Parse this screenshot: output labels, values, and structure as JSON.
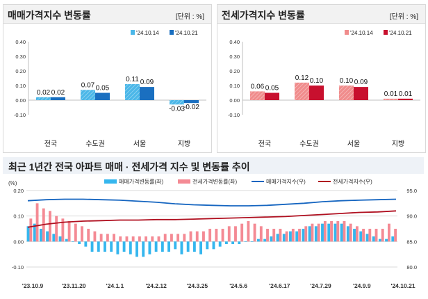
{
  "colors": {
    "sale_old": "#4bb7e8",
    "sale_new": "#1a6fc0",
    "jeonse_old": "#f08c8c",
    "jeonse_new": "#c8102e",
    "sale_index_line": "#1565c0",
    "jeonse_index_line": "#b01020",
    "trend_sale_bar": "#35b6ee",
    "trend_jeonse_bar": "#f48a94"
  },
  "chart_data": [
    {
      "type": "bar",
      "title": "매매가격지수 변동률",
      "unit_label": "[단위 : %]",
      "categories": [
        "전국",
        "수도권",
        "서울",
        "지방"
      ],
      "series": [
        {
          "name": "'24.10.14",
          "values": [
            0.02,
            0.07,
            0.11,
            -0.03
          ],
          "labels": [
            "0.02",
            "0.07",
            "0.11",
            "-0.03"
          ]
        },
        {
          "name": "'24.10.21",
          "values": [
            0.02,
            0.05,
            0.09,
            -0.02
          ],
          "labels": [
            "0.02",
            "0.05",
            "0.09",
            "-0.02"
          ]
        }
      ],
      "yticks": [
        "0.40",
        "0.30",
        "0.20",
        "0.10",
        "0.00",
        "-0.10"
      ],
      "ylim": [
        -0.1,
        0.4
      ],
      "legend": "top-right"
    },
    {
      "type": "bar",
      "title": "전세가격지수 변동률",
      "unit_label": "[단위 : %]",
      "categories": [
        "전국",
        "수도권",
        "서울",
        "지방"
      ],
      "series": [
        {
          "name": "'24.10.14",
          "values": [
            0.06,
            0.12,
            0.1,
            0.01
          ],
          "labels": [
            "0.06",
            "0.12",
            "0.10",
            "0.01"
          ]
        },
        {
          "name": "'24.10.21",
          "values": [
            0.05,
            0.1,
            0.09,
            0.01
          ],
          "labels": [
            "0.05",
            "0.10",
            "0.09",
            "0.01"
          ]
        }
      ],
      "yticks": [
        "0.40",
        "0.30",
        "0.20",
        "0.10",
        "0.00",
        "-0.10"
      ],
      "ylim": [
        -0.1,
        0.4
      ],
      "legend": "top-right"
    },
    {
      "type": "bar",
      "title": "최근 1년간 전국 아파트 매매 · 전세가격 지수 및 변동률 추이",
      "left_axis_unit": "(%)",
      "left_yticks": [
        "0.20",
        "0.10",
        "0.00",
        "-0.10"
      ],
      "right_yticks": [
        "95.0",
        "90.0",
        "85.0",
        "80.0"
      ],
      "ylim_left": [
        -0.1,
        0.2
      ],
      "ylim_right": [
        80,
        95
      ],
      "xticks": [
        "'23.10.9",
        "'23.11.20",
        "'24.1.1",
        "'24.2.12",
        "'24.3.25",
        "'24.5.6",
        "'24.6.17",
        "'24.7.29",
        "'24.9.9",
        "'24.10.21"
      ],
      "legend": "top",
      "series": [
        {
          "name": "매매가격변동률(좌)",
          "type": "bar",
          "values": [
            0.06,
            0.07,
            0.05,
            0.04,
            0.03,
            0.02,
            0.01,
            0.0,
            -0.01,
            -0.02,
            -0.04,
            -0.04,
            -0.04,
            -0.04,
            -0.05,
            -0.04,
            -0.05,
            -0.06,
            -0.06,
            -0.05,
            -0.04,
            -0.04,
            -0.04,
            -0.03,
            -0.05,
            -0.04,
            -0.04,
            -0.05,
            -0.03,
            -0.03,
            -0.02,
            -0.01,
            -0.01,
            -0.01,
            0.0,
            0.0,
            0.01,
            0.01,
            0.02,
            0.03,
            0.03,
            0.04,
            0.04,
            0.05,
            0.06,
            0.06,
            0.07,
            0.07,
            0.07,
            0.07,
            0.06,
            0.05,
            0.04,
            0.03,
            0.02,
            0.01,
            0.01,
            0.02
          ]
        },
        {
          "name": "전세가격변동률(좌)",
          "type": "bar",
          "values": [
            0.09,
            0.15,
            0.13,
            0.12,
            0.1,
            0.09,
            0.08,
            0.07,
            0.06,
            0.05,
            0.04,
            0.03,
            0.03,
            0.03,
            0.02,
            0.02,
            0.02,
            0.02,
            0.02,
            0.02,
            0.02,
            0.03,
            0.03,
            0.03,
            0.03,
            0.04,
            0.04,
            0.04,
            0.05,
            0.05,
            0.05,
            0.06,
            0.06,
            0.07,
            0.08,
            0.07,
            0.06,
            0.05,
            0.05,
            0.05,
            0.04,
            0.05,
            0.05,
            0.06,
            0.07,
            0.07,
            0.08,
            0.08,
            0.08,
            0.08,
            0.07,
            0.06,
            0.05,
            0.05,
            0.05,
            0.05,
            0.07,
            0.05
          ]
        },
        {
          "name": "매매가격지수(우)",
          "type": "line",
          "values": [
            93.0,
            93.2,
            93.3,
            93.3,
            93.2,
            93.1,
            92.9,
            92.7,
            92.4,
            92.2,
            92.1,
            92.0,
            92.0,
            92.1,
            92.3,
            92.5,
            92.8,
            93.0,
            93.1,
            93.2,
            93.3
          ]
        },
        {
          "name": "전세가격지수(우)",
          "type": "line",
          "values": [
            87.8,
            88.4,
            88.8,
            89.0,
            89.1,
            89.2,
            89.2,
            89.3,
            89.3,
            89.4,
            89.5,
            89.6,
            89.7,
            89.8,
            89.9,
            90.1,
            90.3,
            90.5,
            90.7,
            90.8,
            91.0
          ]
        }
      ]
    }
  ]
}
